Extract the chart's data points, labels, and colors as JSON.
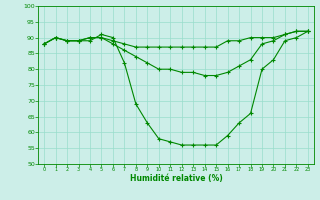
{
  "title": "",
  "xlabel": "Humidité relative (%)",
  "ylabel": "",
  "xlim": [
    -0.5,
    23.5
  ],
  "ylim": [
    50,
    100
  ],
  "yticks": [
    50,
    55,
    60,
    65,
    70,
    75,
    80,
    85,
    90,
    95,
    100
  ],
  "xticks": [
    0,
    1,
    2,
    3,
    4,
    5,
    6,
    7,
    8,
    9,
    10,
    11,
    12,
    13,
    14,
    15,
    16,
    17,
    18,
    19,
    20,
    21,
    22,
    23
  ],
  "bg_color": "#cceee8",
  "grid_color": "#99ddcc",
  "line_color": "#008800",
  "line1": [
    88,
    90,
    89,
    89,
    89,
    91,
    90,
    82,
    69,
    63,
    58,
    57,
    56,
    56,
    56,
    56,
    59,
    63,
    66,
    80,
    83,
    89,
    90,
    92
  ],
  "line2": [
    88,
    90,
    89,
    89,
    90,
    90,
    88,
    86,
    84,
    82,
    80,
    80,
    79,
    79,
    78,
    78,
    79,
    81,
    83,
    88,
    89,
    91,
    92,
    92
  ],
  "line3": [
    88,
    90,
    89,
    89,
    90,
    90,
    89,
    88,
    87,
    87,
    87,
    87,
    87,
    87,
    87,
    87,
    89,
    89,
    90,
    90,
    90,
    91,
    92,
    92
  ]
}
